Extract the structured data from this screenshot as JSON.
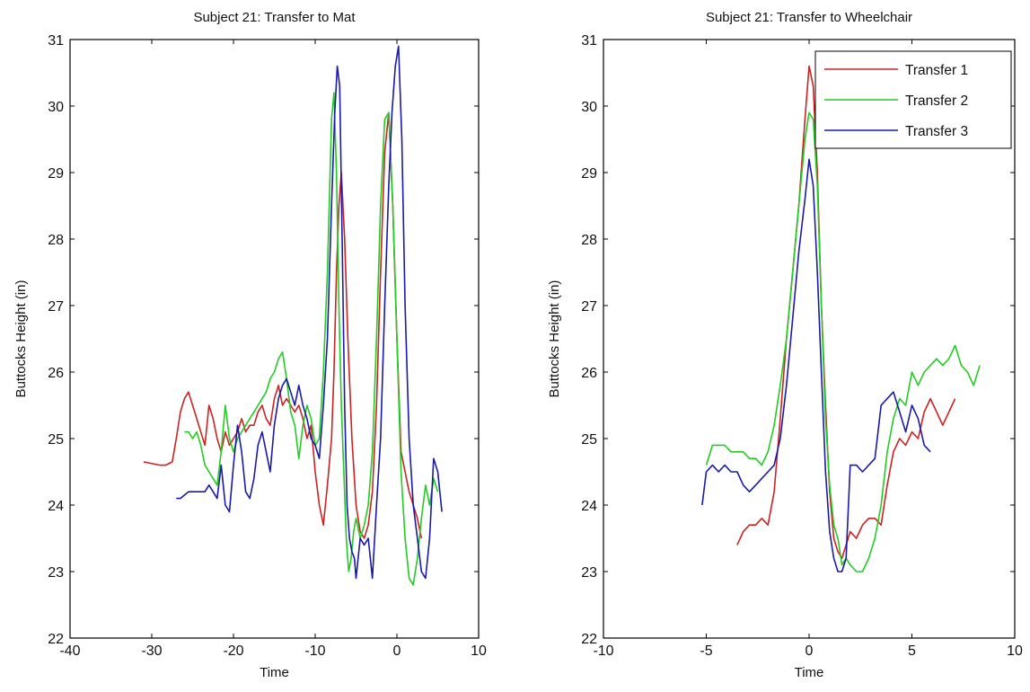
{
  "chart_data": [
    {
      "type": "line",
      "title": "Subject 21: Transfer to Mat",
      "xlabel": "Time",
      "ylabel": "Buttocks Height (in)",
      "xlim": [
        -40,
        10
      ],
      "ylim": [
        22,
        31
      ],
      "xticks": [
        -40,
        -30,
        -20,
        -10,
        0,
        10
      ],
      "yticks": [
        22,
        23,
        24,
        25,
        26,
        27,
        28,
        29,
        30,
        31
      ],
      "grid": false,
      "legend": null,
      "series": [
        {
          "name": "Transfer 1",
          "color": "#cc2222",
          "x": [
            -31,
            -29,
            -28.3,
            -27.5,
            -27,
            -26.5,
            -26,
            -25.5,
            -25,
            -24.5,
            -24,
            -23.5,
            -23,
            -22.5,
            -22,
            -21.5,
            -21,
            -20.5,
            -20,
            -19.5,
            -19,
            -18.5,
            -18,
            -17.5,
            -17,
            -16.5,
            -16,
            -15.5,
            -15,
            -14.5,
            -14,
            -13.5,
            -13,
            -12.5,
            -12,
            -11.5,
            -11,
            -10.5,
            -10,
            -9.5,
            -9,
            -8.5,
            -8,
            -7.7,
            -7.4,
            -7.1,
            -6.8,
            -6.4,
            -6,
            -5.5,
            -5,
            -4.5,
            -4,
            -3.5,
            -3,
            -2.5,
            -2,
            -1.5,
            -1,
            -0.5,
            0,
            0.5,
            1,
            1.5,
            2,
            2.5,
            3
          ],
          "y": [
            24.65,
            24.6,
            24.6,
            24.65,
            25.0,
            25.4,
            25.6,
            25.7,
            25.5,
            25.3,
            25.1,
            24.9,
            25.5,
            25.3,
            25.0,
            24.8,
            25.1,
            24.9,
            25.0,
            25.1,
            25.3,
            25.1,
            25.2,
            25.2,
            25.4,
            25.5,
            25.3,
            25.2,
            25.6,
            25.8,
            25.5,
            25.6,
            25.5,
            25.4,
            25.5,
            25.3,
            25.0,
            25.2,
            24.5,
            24.0,
            23.7,
            24.3,
            25.0,
            26.0,
            27.5,
            28.5,
            29.0,
            28.0,
            26.5,
            25.0,
            24.0,
            23.6,
            23.5,
            23.7,
            24.2,
            25.5,
            27.5,
            29.3,
            29.9,
            28.5,
            26.5,
            24.8,
            24.5,
            24.2,
            24.0,
            23.8,
            23.5
          ]
        },
        {
          "name": "Transfer 2",
          "color": "#22cc22",
          "x": [
            -26,
            -25.5,
            -25,
            -24.5,
            -24,
            -23.5,
            -23,
            -22.5,
            -22,
            -21.5,
            -21,
            -20.5,
            -20,
            -19.5,
            -19,
            -18.5,
            -18,
            -17.5,
            -17,
            -16.5,
            -16,
            -15.5,
            -15,
            -14.5,
            -14,
            -13.5,
            -13,
            -12.5,
            -12,
            -11.5,
            -11,
            -10.5,
            -10,
            -9.5,
            -9,
            -8.5,
            -8,
            -7.7,
            -7.4,
            -7.1,
            -6.8,
            -6.5,
            -6.2,
            -5.9,
            -5.6,
            -5.3,
            -5,
            -4.5,
            -4,
            -3.5,
            -3,
            -2.5,
            -2,
            -1.5,
            -1,
            -0.5,
            0,
            0.5,
            1,
            1.5,
            2,
            2.5,
            3,
            3.5,
            4,
            4.5,
            5
          ],
          "y": [
            25.1,
            25.1,
            25.0,
            25.1,
            24.9,
            24.6,
            24.5,
            24.4,
            24.3,
            24.8,
            25.5,
            25.0,
            24.8,
            25.0,
            25.1,
            25.2,
            25.3,
            25.4,
            25.5,
            25.6,
            25.7,
            25.9,
            26.0,
            26.2,
            26.3,
            25.9,
            25.4,
            25.2,
            24.7,
            25.2,
            25.5,
            25.3,
            24.9,
            25.0,
            26.0,
            27.5,
            29.8,
            30.2,
            29.0,
            27.0,
            25.5,
            24.5,
            23.5,
            23.0,
            23.2,
            23.6,
            23.8,
            23.5,
            23.7,
            24.0,
            24.8,
            26.5,
            28.5,
            29.8,
            29.9,
            28.5,
            26.5,
            24.5,
            23.5,
            22.9,
            22.8,
            23.2,
            23.8,
            24.3,
            24.0,
            24.4,
            24.2
          ]
        },
        {
          "name": "Transfer 3",
          "color": "#1a1aaa",
          "x": [
            -27,
            -26.5,
            -26,
            -25.5,
            -25,
            -24.5,
            -24,
            -23.5,
            -23,
            -22.5,
            -22,
            -21.5,
            -21,
            -20.5,
            -20,
            -19.5,
            -19,
            -18.5,
            -18,
            -17.5,
            -17,
            -16.5,
            -16,
            -15.5,
            -15,
            -14.5,
            -14,
            -13.5,
            -13,
            -12.5,
            -12,
            -11.5,
            -11,
            -10.5,
            -10,
            -9.5,
            -9,
            -8.5,
            -8,
            -7.6,
            -7.3,
            -7,
            -6.7,
            -6.4,
            -6.1,
            -5.8,
            -5.5,
            -5.2,
            -5,
            -4.5,
            -4,
            -3.5,
            -3,
            -2.5,
            -2,
            -1.5,
            -1,
            -0.6,
            -0.2,
            0.2,
            0.6,
            1,
            1.5,
            2,
            2.5,
            3,
            3.5,
            4,
            4.5,
            5,
            5.5
          ],
          "y": [
            24.1,
            24.1,
            24.15,
            24.2,
            24.2,
            24.2,
            24.2,
            24.2,
            24.3,
            24.2,
            24.1,
            24.6,
            24.0,
            23.9,
            24.6,
            25.2,
            24.8,
            24.2,
            24.1,
            24.4,
            24.9,
            25.1,
            24.8,
            24.5,
            25.2,
            25.6,
            25.8,
            25.9,
            25.7,
            25.5,
            25.8,
            25.5,
            25.3,
            25.0,
            24.9,
            24.7,
            25.5,
            26.5,
            28.5,
            29.9,
            30.6,
            30.3,
            28.0,
            25.5,
            24.0,
            23.5,
            23.3,
            23.2,
            22.9,
            23.5,
            23.4,
            23.5,
            22.9,
            24.0,
            25.0,
            27.0,
            28.8,
            29.9,
            30.6,
            30.9,
            29.5,
            27.0,
            25.0,
            24.0,
            23.5,
            23.0,
            22.9,
            23.5,
            24.7,
            24.5,
            23.9
          ]
        }
      ]
    },
    {
      "type": "line",
      "title": "Subject 21: Transfer to Wheelchair",
      "xlabel": "Time",
      "ylabel": "Buttocks Height (in)",
      "xlim": [
        -10,
        10
      ],
      "ylim": [
        22,
        31
      ],
      "xticks": [
        -10,
        -5,
        0,
        5,
        10
      ],
      "yticks": [
        22,
        23,
        24,
        25,
        26,
        27,
        28,
        29,
        30,
        31
      ],
      "grid": false,
      "legend": "top-right",
      "series": [
        {
          "name": "Transfer 1",
          "color": "#cc2222",
          "x": [
            -3.5,
            -3.2,
            -2.9,
            -2.6,
            -2.3,
            -2.0,
            -1.7,
            -1.4,
            -1.1,
            -0.8,
            -0.5,
            -0.2,
            0.0,
            0.2,
            0.4,
            0.6,
            0.8,
            1.0,
            1.2,
            1.4,
            1.6,
            1.8,
            2.0,
            2.3,
            2.6,
            2.9,
            3.2,
            3.5,
            3.8,
            4.1,
            4.4,
            4.7,
            5.0,
            5.3,
            5.6,
            5.9,
            6.2,
            6.5,
            6.8,
            7.1
          ],
          "y": [
            23.4,
            23.6,
            23.7,
            23.7,
            23.8,
            23.7,
            24.2,
            25.3,
            26.5,
            27.5,
            28.5,
            29.8,
            30.6,
            30.3,
            29.0,
            27.0,
            25.5,
            24.2,
            23.5,
            23.3,
            23.2,
            23.4,
            23.6,
            23.5,
            23.7,
            23.8,
            23.8,
            23.7,
            24.3,
            24.8,
            25.0,
            24.9,
            25.1,
            25.0,
            25.4,
            25.6,
            25.4,
            25.2,
            25.4,
            25.6
          ]
        },
        {
          "name": "Transfer 2",
          "color": "#22cc22",
          "x": [
            -5,
            -4.7,
            -4.4,
            -4.1,
            -3.8,
            -3.5,
            -3.2,
            -2.9,
            -2.6,
            -2.3,
            -2.0,
            -1.7,
            -1.4,
            -1.1,
            -0.8,
            -0.5,
            -0.2,
            0.0,
            0.2,
            0.4,
            0.6,
            0.8,
            1.0,
            1.2,
            1.4,
            1.6,
            1.8,
            2.0,
            2.3,
            2.6,
            2.9,
            3.2,
            3.5,
            3.8,
            4.1,
            4.4,
            4.7,
            5.0,
            5.3,
            5.6,
            5.9,
            6.2,
            6.5,
            6.8,
            7.1,
            7.4,
            7.7,
            8.0,
            8.3
          ],
          "y": [
            24.6,
            24.9,
            24.9,
            24.9,
            24.8,
            24.8,
            24.8,
            24.7,
            24.7,
            24.6,
            24.8,
            25.2,
            25.8,
            26.5,
            27.5,
            28.5,
            29.5,
            29.9,
            29.8,
            28.8,
            27.0,
            25.3,
            24.3,
            23.7,
            23.5,
            23.1,
            23.2,
            23.1,
            23.0,
            23.0,
            23.2,
            23.5,
            24.0,
            24.8,
            25.3,
            25.6,
            25.5,
            26.0,
            25.8,
            26.0,
            26.1,
            26.2,
            26.1,
            26.2,
            26.4,
            26.1,
            26.0,
            25.8,
            26.1
          ]
        },
        {
          "name": "Transfer 3",
          "color": "#1a1aaa",
          "x": [
            -5.2,
            -5.0,
            -4.7,
            -4.4,
            -4.1,
            -3.8,
            -3.5,
            -3.2,
            -2.9,
            -2.6,
            -2.3,
            -2.0,
            -1.7,
            -1.4,
            -1.1,
            -0.8,
            -0.5,
            -0.2,
            0.0,
            0.2,
            0.4,
            0.6,
            0.8,
            1.0,
            1.2,
            1.4,
            1.6,
            1.8,
            2.0,
            2.3,
            2.6,
            2.9,
            3.2,
            3.5,
            3.8,
            4.1,
            4.4,
            4.7,
            5.0,
            5.3,
            5.6,
            5.9
          ],
          "y": [
            24.0,
            24.5,
            24.6,
            24.5,
            24.6,
            24.5,
            24.5,
            24.3,
            24.2,
            24.3,
            24.4,
            24.5,
            24.6,
            25.0,
            25.8,
            26.8,
            27.8,
            28.6,
            29.2,
            28.8,
            27.5,
            26.0,
            24.5,
            23.6,
            23.2,
            23.0,
            23.0,
            23.2,
            24.6,
            24.6,
            24.5,
            24.6,
            24.7,
            25.5,
            25.6,
            25.7,
            25.4,
            25.1,
            25.5,
            25.3,
            24.9,
            24.8
          ]
        }
      ]
    }
  ]
}
